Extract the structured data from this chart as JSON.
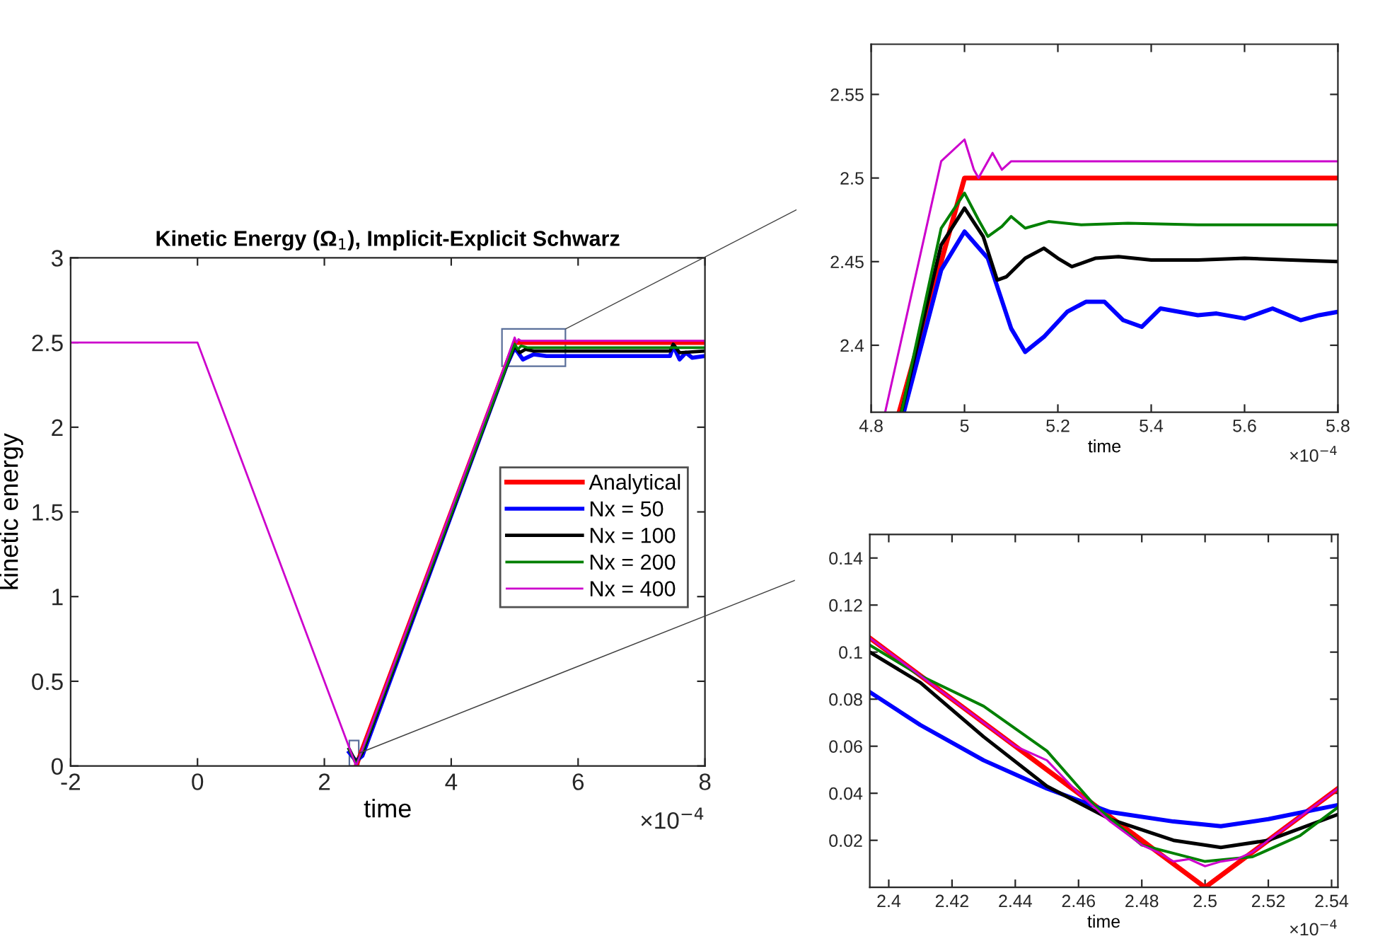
{
  "chart_data": [
    {
      "type": "line",
      "title": "Kinetic Energy (Ω$_{1}$), Implicit-Explicit Schwarz",
      "xlabel": "time",
      "ylabel": "kinetic energy",
      "annotations": [
        "×10$^{−4}$"
      ],
      "xlim": [
        -2,
        8
      ],
      "ylim": [
        0,
        3
      ],
      "xticks": [
        -2,
        0,
        2,
        4,
        6,
        8
      ],
      "yticks": [
        0,
        0.5,
        1,
        1.5,
        2,
        2.5,
        3
      ],
      "legend": "right",
      "grid": false,
      "series": [
        {
          "name": "Analytical",
          "color": "#ff0000",
          "x": [
            2.5,
            5,
            8
          ],
          "values": [
            0,
            2.5,
            2.5
          ]
        },
        {
          "name": "Nx = 50",
          "color": "#0000ff",
          "x": [
            2.39,
            2.5,
            2.6,
            4.87,
            5.0,
            5.13,
            5.3,
            5.5,
            7.0,
            7.45,
            7.5,
            7.6,
            7.7,
            7.8,
            8
          ],
          "values": [
            0.08,
            0.03,
            0.06,
            2.36,
            2.47,
            2.4,
            2.43,
            2.42,
            2.42,
            2.42,
            2.48,
            2.4,
            2.44,
            2.41,
            2.42
          ]
        },
        {
          "name": "Nx = 100",
          "color": "#000000",
          "x": [
            2.39,
            2.5,
            2.6,
            4.87,
            5.0,
            5.08,
            5.17,
            5.3,
            7.0,
            7.45,
            7.5,
            7.6,
            8
          ],
          "values": [
            0.1,
            0.02,
            0.08,
            2.36,
            2.48,
            2.44,
            2.46,
            2.45,
            2.45,
            2.45,
            2.49,
            2.44,
            2.45
          ]
        },
        {
          "name": "Nx = 200",
          "color": "#008000",
          "x": [
            2.39,
            2.5,
            2.6,
            4.87,
            5.0,
            5.05,
            5.1,
            5.2,
            8
          ],
          "values": [
            0.1,
            0.01,
            0.09,
            2.36,
            2.49,
            2.46,
            2.48,
            2.47,
            2.47
          ]
        },
        {
          "name": "Nx = 400",
          "color": "#cc00cc",
          "x": [
            -2,
            0,
            2.39,
            2.49,
            2.5,
            2.51,
            2.6,
            4.84,
            5.0,
            5.03,
            5.06,
            5.1,
            8
          ],
          "values": [
            2.5,
            2.5,
            0.11,
            0.01,
            0.01,
            0.01,
            0.1,
            2.36,
            2.53,
            2.5,
            2.52,
            2.51,
            2.51
          ]
        }
      ]
    },
    {
      "type": "line",
      "xlabel": "time",
      "annotations": [
        "×10$^{−4}$"
      ],
      "xlim": [
        4.8,
        5.8
      ],
      "ylim": [
        2.36,
        2.58
      ],
      "xticks": [
        4.8,
        5,
        5.2,
        5.4,
        5.6,
        5.8
      ],
      "yticks": [
        2.4,
        2.45,
        2.5,
        2.55
      ],
      "grid": false,
      "series": [
        {
          "color": "#ff0000",
          "x": [
            4.86,
            5.0,
            5.8
          ],
          "values": [
            2.36,
            2.5,
            2.5
          ]
        },
        {
          "color": "#0000ff",
          "x": [
            4.87,
            4.95,
            5.0,
            5.05,
            5.1,
            5.13,
            5.17,
            5.22,
            5.26,
            5.3,
            5.34,
            5.38,
            5.42,
            5.46,
            5.5,
            5.54,
            5.6,
            5.66,
            5.72,
            5.76,
            5.8
          ],
          "values": [
            2.36,
            2.445,
            2.468,
            2.452,
            2.41,
            2.396,
            2.405,
            2.42,
            2.426,
            2.426,
            2.415,
            2.411,
            2.422,
            2.42,
            2.418,
            2.419,
            2.416,
            2.422,
            2.415,
            2.418,
            2.42
          ]
        },
        {
          "color": "#000000",
          "x": [
            4.865,
            4.95,
            5.0,
            5.04,
            5.07,
            5.09,
            5.13,
            5.17,
            5.2,
            5.23,
            5.28,
            5.33,
            5.4,
            5.5,
            5.6,
            5.7,
            5.8
          ],
          "values": [
            2.36,
            2.46,
            2.482,
            2.465,
            2.439,
            2.441,
            2.452,
            2.458,
            2.452,
            2.447,
            2.452,
            2.453,
            2.451,
            2.451,
            2.452,
            2.451,
            2.45
          ]
        },
        {
          "color": "#008000",
          "x": [
            4.865,
            4.95,
            5.0,
            5.03,
            5.05,
            5.08,
            5.1,
            5.13,
            5.18,
            5.25,
            5.35,
            5.5,
            5.8
          ],
          "values": [
            2.36,
            2.47,
            2.491,
            2.475,
            2.465,
            2.471,
            2.477,
            2.47,
            2.474,
            2.472,
            2.473,
            2.472,
            2.472
          ]
        },
        {
          "color": "#cc00cc",
          "x": [
            4.83,
            4.95,
            5.0,
            5.02,
            5.03,
            5.06,
            5.08,
            5.1,
            5.2,
            5.4,
            5.6,
            5.8
          ],
          "values": [
            2.36,
            2.51,
            2.523,
            2.505,
            2.5,
            2.515,
            2.505,
            2.51,
            2.51,
            2.51,
            2.51,
            2.51
          ]
        }
      ]
    },
    {
      "type": "line",
      "xlabel": "time",
      "annotations": [
        "×10$^{−4}$"
      ],
      "xlim": [
        2.394,
        2.542
      ],
      "ylim": [
        0,
        0.15
      ],
      "xticks": [
        2.4,
        2.42,
        2.44,
        2.46,
        2.48,
        2.5,
        2.52,
        2.54
      ],
      "yticks": [
        0.02,
        0.04,
        0.06,
        0.08,
        0.1,
        0.12,
        0.14
      ],
      "grid": false,
      "series": [
        {
          "color": "#ff0000",
          "x": [
            2.394,
            2.5,
            2.542
          ],
          "values": [
            0.106,
            0,
            0.042
          ]
        },
        {
          "color": "#0000ff",
          "x": [
            2.394,
            2.41,
            2.43,
            2.45,
            2.47,
            2.49,
            2.505,
            2.52,
            2.542
          ],
          "values": [
            0.083,
            0.069,
            0.054,
            0.042,
            0.032,
            0.028,
            0.026,
            0.029,
            0.035
          ]
        },
        {
          "color": "#000000",
          "x": [
            2.394,
            2.41,
            2.43,
            2.45,
            2.47,
            2.49,
            2.505,
            2.52,
            2.542
          ],
          "values": [
            0.1,
            0.087,
            0.064,
            0.043,
            0.029,
            0.02,
            0.017,
            0.02,
            0.031
          ]
        },
        {
          "color": "#008000",
          "x": [
            2.394,
            2.41,
            2.43,
            2.45,
            2.465,
            2.48,
            2.5,
            2.515,
            2.53,
            2.542
          ],
          "values": [
            0.103,
            0.09,
            0.077,
            0.058,
            0.035,
            0.018,
            0.011,
            0.013,
            0.022,
            0.034
          ]
        },
        {
          "color": "#cc00cc",
          "x": [
            2.394,
            2.4,
            2.41,
            2.42,
            2.43,
            2.44,
            2.45,
            2.46,
            2.47,
            2.48,
            2.485,
            2.49,
            2.495,
            2.5,
            2.505,
            2.51,
            2.515,
            2.52,
            2.53,
            2.542
          ],
          "values": [
            0.106,
            0.1,
            0.09,
            0.08,
            0.07,
            0.06,
            0.054,
            0.04,
            0.028,
            0.018,
            0.015,
            0.011,
            0.012,
            0.009,
            0.011,
            0.012,
            0.015,
            0.02,
            0.03,
            0.042
          ]
        }
      ]
    }
  ]
}
